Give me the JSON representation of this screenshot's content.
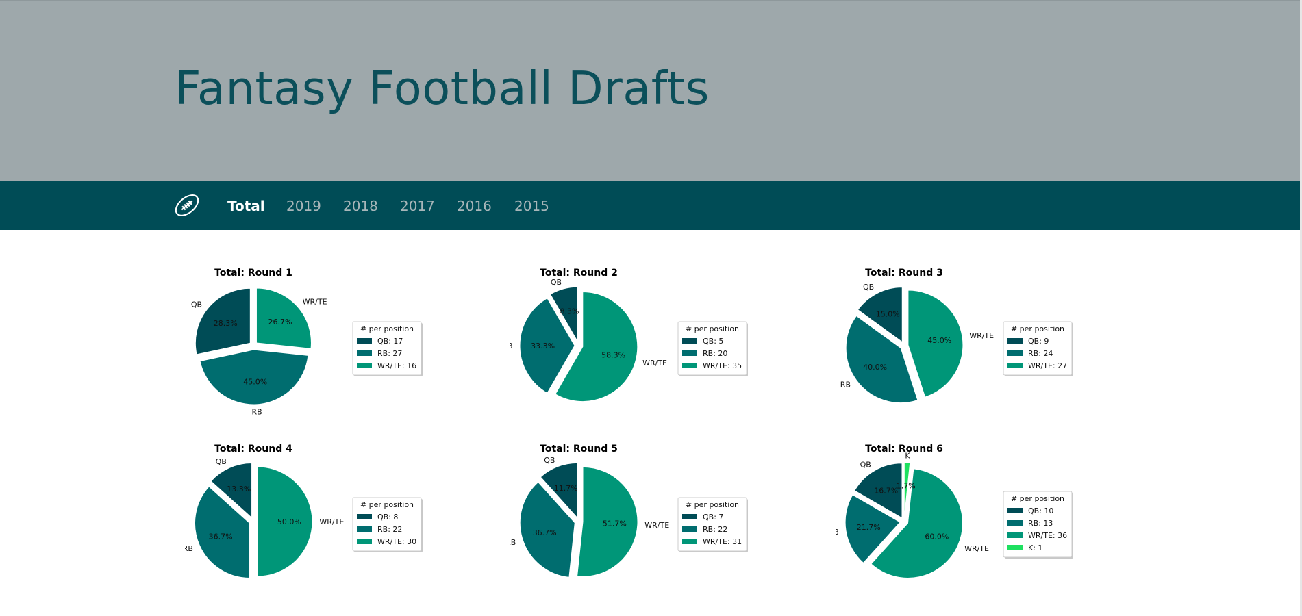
{
  "header": {
    "title": "Fantasy Football Drafts"
  },
  "nav": {
    "items": [
      {
        "label": "Total",
        "active": true
      },
      {
        "label": "2019",
        "active": false
      },
      {
        "label": "2018",
        "active": false
      },
      {
        "label": "2017",
        "active": false
      },
      {
        "label": "2016",
        "active": false
      },
      {
        "label": "2015",
        "active": false
      }
    ]
  },
  "colors": {
    "header_bg": "#9ea8ab",
    "nav_bg": "#004c56",
    "title": "#0b4f5a",
    "QB": "#004c56",
    "RB": "#006d6f",
    "WR/TE": "#009678",
    "K": "#1ee060"
  },
  "chart_data": [
    {
      "type": "pie",
      "title": "Total: Round 1",
      "legend_title": "# per position",
      "legend_placement": "right",
      "slices": [
        {
          "label": "QB",
          "value": 17,
          "pct": "28.3%"
        },
        {
          "label": "RB",
          "value": 27,
          "pct": "45.0%"
        },
        {
          "label": "WR/TE",
          "value": 16,
          "pct": "26.7%"
        }
      ],
      "legend": [
        "QB: 17",
        "RB: 27",
        "WR/TE: 16"
      ]
    },
    {
      "type": "pie",
      "title": "Total: Round 2",
      "legend_title": "# per position",
      "legend_placement": "right",
      "slices": [
        {
          "label": "QB",
          "value": 5,
          "pct": "8.3%"
        },
        {
          "label": "RB",
          "value": 20,
          "pct": "33.3%"
        },
        {
          "label": "WR/TE",
          "value": 35,
          "pct": "58.3%"
        }
      ],
      "legend": [
        "QB: 5",
        "RB: 20",
        "WR/TE: 35"
      ]
    },
    {
      "type": "pie",
      "title": "Total: Round 3",
      "legend_title": "# per position",
      "legend_placement": "right",
      "slices": [
        {
          "label": "QB",
          "value": 9,
          "pct": "15.0%"
        },
        {
          "label": "RB",
          "value": 24,
          "pct": "40.0%"
        },
        {
          "label": "WR/TE",
          "value": 27,
          "pct": "45.0%"
        }
      ],
      "legend": [
        "QB: 9",
        "RB: 24",
        "WR/TE: 27"
      ]
    },
    {
      "type": "pie",
      "title": "Total: Round 4",
      "legend_title": "# per position",
      "legend_placement": "right",
      "slices": [
        {
          "label": "QB",
          "value": 8,
          "pct": "13.3%"
        },
        {
          "label": "RB",
          "value": 22,
          "pct": "36.7%"
        },
        {
          "label": "WR/TE",
          "value": 30,
          "pct": "50.0%"
        }
      ],
      "legend": [
        "QB: 8",
        "RB: 22",
        "WR/TE: 30"
      ]
    },
    {
      "type": "pie",
      "title": "Total: Round 5",
      "legend_title": "# per position",
      "legend_placement": "right",
      "slices": [
        {
          "label": "QB",
          "value": 7,
          "pct": "11.7%"
        },
        {
          "label": "RB",
          "value": 22,
          "pct": "36.7%"
        },
        {
          "label": "WR/TE",
          "value": 31,
          "pct": "51.7%"
        }
      ],
      "legend": [
        "QB: 7",
        "RB: 22",
        "WR/TE: 31"
      ]
    },
    {
      "type": "pie",
      "title": "Total: Round 6",
      "legend_title": "# per position",
      "legend_placement": "right",
      "slices": [
        {
          "label": "QB",
          "value": 10,
          "pct": "16.7%"
        },
        {
          "label": "RB",
          "value": 13,
          "pct": "21.7%"
        },
        {
          "label": "WR/TE",
          "value": 36,
          "pct": "60.0%"
        },
        {
          "label": "K",
          "value": 1,
          "pct": "1.7%"
        }
      ],
      "legend": [
        "QB: 10",
        "RB: 13",
        "WR/TE: 36",
        "K: 1"
      ]
    }
  ]
}
